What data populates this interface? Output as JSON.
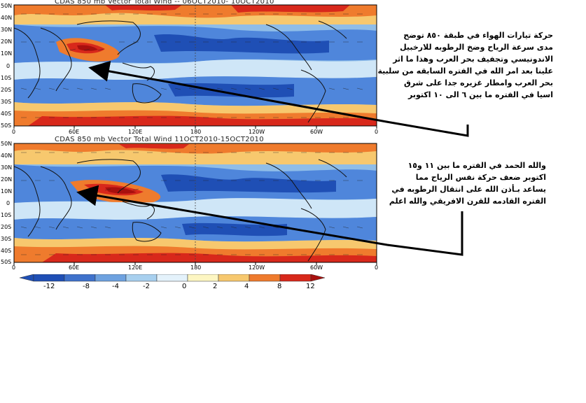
{
  "colors": {
    "strong_neg": "#1f4fb5",
    "mid_neg": "#4f86db",
    "weak_neg": "#8fbde8",
    "faint_neg": "#cfe6f7",
    "faint_pos": "#fdf6c2",
    "weak_pos": "#f7c86e",
    "mid_pos": "#ef7b2d",
    "strong_pos": "#d8281b",
    "extreme_pos": "#a8100e"
  },
  "panels": [
    {
      "title": "CDAS 850 mb Vector Total Wind -- 06OCT2010- 10OCT2010",
      "lat_labels": [
        "50N",
        "40N",
        "30N",
        "20N",
        "10N",
        "0",
        "10S",
        "20S",
        "30S",
        "40S",
        "50S"
      ],
      "lon_labels": [
        "0",
        "60E",
        "120E",
        "180",
        "120W",
        "60W",
        "0"
      ]
    },
    {
      "title": "CDAS 850 mb Vector Total Wind 11OCT2010-15OCT2010",
      "lat_labels": [
        "50N",
        "40N",
        "30N",
        "20N",
        "10N",
        "0",
        "10S",
        "20S",
        "30S",
        "40S",
        "50S"
      ],
      "lon_labels": [
        "0",
        "60E",
        "120E",
        "180",
        "120W",
        "60W",
        "0"
      ]
    }
  ],
  "colorbar": {
    "labels": [
      "-12",
      "-8",
      "-4",
      "-2",
      "0",
      "2",
      "4",
      "8",
      "12"
    ]
  },
  "annotations": {
    "top": [
      "حركة تيارات الهواء في طبقة ٨٥٠ توضح",
      "مدى سرعة الرياح وضخ الرطوبه للارخبيل",
      "الاندونيسي وتجفيف بحر العرب وهذا ما اثر",
      "علينا بعد امر الله في الفتره السابقه من سلبية",
      "بحر العرب وامطار غزيره جدا على شرق",
      "اسيا في الفتره ما بين ٦ الى ١٠ اكتوبر"
    ],
    "bottom": [
      "والله الحمد في الفتره ما بين ١١ و١٥",
      "اكتوبر ضعف حركة نفس الرياح مما",
      "يساعد بـأذن الله على انتقال الرطوبه في",
      "الفتره القادمه للقرن الافريقي والله اعلم"
    ]
  }
}
